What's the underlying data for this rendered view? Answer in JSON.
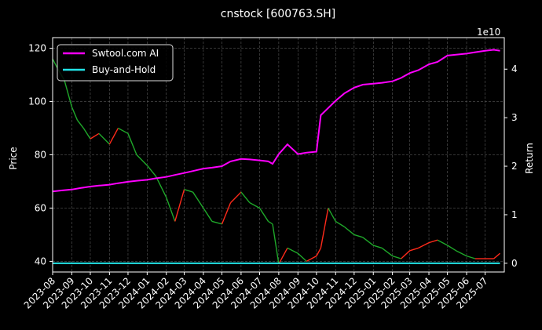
{
  "chart_data": {
    "type": "line",
    "title": "cnstock [600763.SH]",
    "xlabel": "",
    "ylabel": "Price",
    "y2label": "Return",
    "y2_offset_text": "1e10",
    "ylim": [
      36,
      124
    ],
    "y2lim": [
      -0.18,
      4.65
    ],
    "yticks": [
      40,
      60,
      80,
      100,
      120
    ],
    "y2ticks": [
      0,
      1,
      2,
      3,
      4
    ],
    "x_start": "2023-08",
    "x_end": "2025-08",
    "xticks": [
      "2023-08",
      "2023-09",
      "2023-10",
      "2023-11",
      "2023-12",
      "2024-01",
      "2024-02",
      "2024-03",
      "2024-04",
      "2024-05",
      "2024-06",
      "2024-07",
      "2024-08",
      "2024-09",
      "2024-10",
      "2024-11",
      "2024-12",
      "2025-01",
      "2025-02",
      "2025-03",
      "2025-04",
      "2025-05",
      "2025-06",
      "2025-07"
    ],
    "grid": true,
    "legend_position": "top-left",
    "legend": [
      {
        "label": "Swtool.com AI",
        "color": "#ff00ff"
      },
      {
        "label": "Buy-and-Hold",
        "color": "#22e4e8"
      }
    ],
    "price_series": {
      "name": "Price",
      "up_color": "#ff2a1a",
      "down_color": "#1fa82a",
      "x": [
        "2023-08-01",
        "2023-08-10",
        "2023-08-20",
        "2023-09-01",
        "2023-09-10",
        "2023-09-20",
        "2023-10-01",
        "2023-10-15",
        "2023-11-01",
        "2023-11-15",
        "2023-12-01",
        "2023-12-15",
        "2024-01-01",
        "2024-01-15",
        "2024-02-01",
        "2024-02-15",
        "2024-03-01",
        "2024-03-15",
        "2024-04-01",
        "2024-04-15",
        "2024-05-01",
        "2024-05-15",
        "2024-06-01",
        "2024-06-15",
        "2024-07-01",
        "2024-07-15",
        "2024-07-22",
        "2024-08-01",
        "2024-08-15",
        "2024-09-01",
        "2024-09-15",
        "2024-10-01",
        "2024-10-08",
        "2024-10-20",
        "2024-11-01",
        "2024-11-15",
        "2024-12-01",
        "2024-12-15",
        "2025-01-01",
        "2025-01-15",
        "2025-02-01",
        "2025-02-15",
        "2025-03-01",
        "2025-03-15",
        "2025-04-01",
        "2025-04-15",
        "2025-05-01",
        "2025-05-15",
        "2025-06-01",
        "2025-06-15",
        "2025-07-01",
        "2025-07-15",
        "2025-07-25"
      ],
      "y": [
        116,
        112,
        108,
        98,
        93,
        90,
        86,
        88,
        84,
        90,
        88,
        80,
        76,
        72,
        64,
        55,
        67,
        66,
        60,
        55,
        54,
        62,
        66,
        62,
        60,
        55,
        54,
        39,
        45,
        43,
        40,
        42,
        45,
        60,
        55,
        53,
        50,
        49,
        46,
        45,
        42,
        41,
        44,
        45,
        47,
        48,
        46,
        44,
        42,
        41,
        41,
        41,
        43
      ]
    },
    "series": [
      {
        "name": "Swtool.com AI",
        "color": "#ff00ff",
        "x": [
          "2023-08-01",
          "2023-08-15",
          "2023-09-01",
          "2023-09-15",
          "2023-10-01",
          "2023-10-15",
          "2023-11-01",
          "2023-11-15",
          "2023-12-01",
          "2023-12-15",
          "2024-01-01",
          "2024-01-15",
          "2024-02-01",
          "2024-02-15",
          "2024-03-01",
          "2024-03-15",
          "2024-04-01",
          "2024-04-15",
          "2024-05-01",
          "2024-05-15",
          "2024-06-01",
          "2024-06-15",
          "2024-07-01",
          "2024-07-15",
          "2024-07-22",
          "2024-08-01",
          "2024-08-15",
          "2024-09-01",
          "2024-09-15",
          "2024-10-01",
          "2024-10-08",
          "2024-10-20",
          "2024-11-01",
          "2024-11-15",
          "2024-12-01",
          "2024-12-15",
          "2025-01-01",
          "2025-01-15",
          "2025-02-01",
          "2025-02-15",
          "2025-03-01",
          "2025-03-15",
          "2025-04-01",
          "2025-04-15",
          "2025-05-01",
          "2025-05-15",
          "2025-06-01",
          "2025-06-15",
          "2025-07-01",
          "2025-07-15",
          "2025-07-25"
        ],
        "values": [
          1.48,
          1.5,
          1.52,
          1.55,
          1.58,
          1.6,
          1.62,
          1.65,
          1.68,
          1.7,
          1.72,
          1.75,
          1.78,
          1.82,
          1.86,
          1.9,
          1.95,
          1.97,
          2.0,
          2.1,
          2.15,
          2.14,
          2.12,
          2.1,
          2.05,
          2.25,
          2.45,
          2.25,
          2.28,
          2.3,
          3.05,
          3.2,
          3.35,
          3.5,
          3.62,
          3.68,
          3.7,
          3.72,
          3.75,
          3.82,
          3.92,
          3.98,
          4.1,
          4.15,
          4.28,
          4.3,
          4.32,
          4.35,
          4.38,
          4.4,
          4.38
        ]
      },
      {
        "name": "Buy-and-Hold",
        "color": "#22e4e8",
        "x": [
          "2023-08-01",
          "2025-07-25"
        ],
        "values": [
          0,
          0
        ]
      }
    ]
  }
}
